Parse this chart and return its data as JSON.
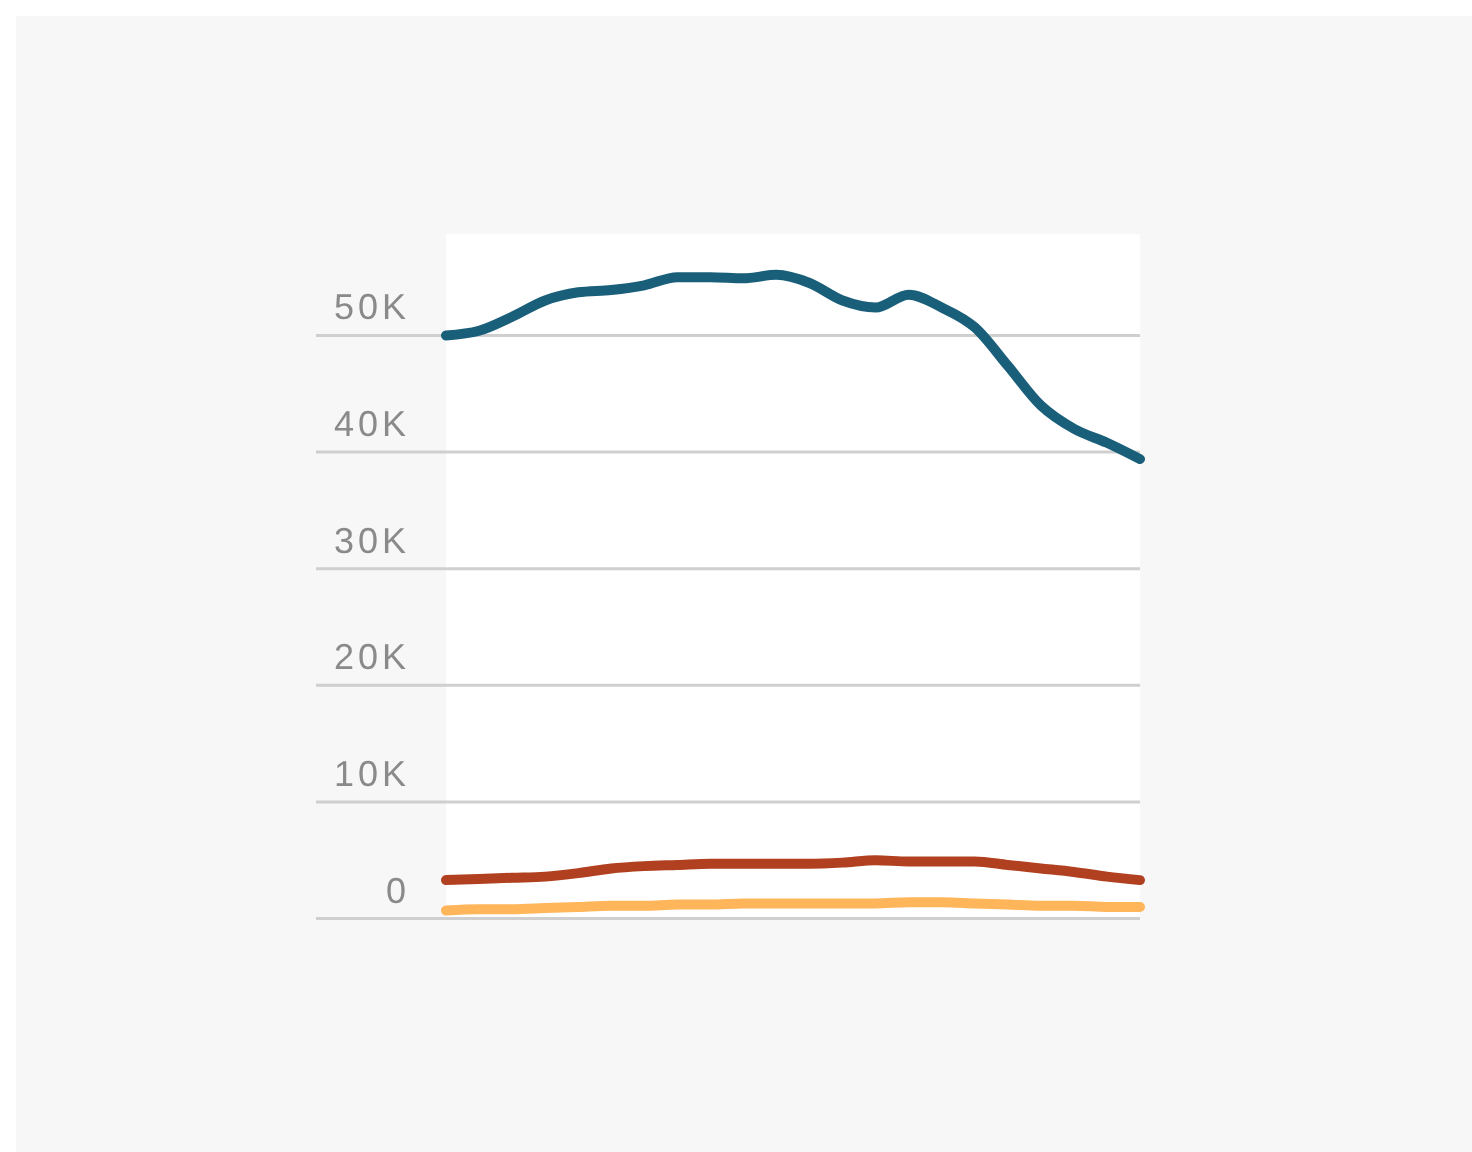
{
  "chart_data": {
    "type": "line",
    "categories": [
      null,
      null,
      null,
      null,
      null,
      null,
      null,
      null,
      null,
      null,
      null,
      null,
      null,
      null,
      null,
      null,
      null,
      null,
      null,
      null,
      null,
      null
    ],
    "series": [
      {
        "color": "#1a5f7a",
        "values": [
          50000,
          50400,
          51600,
          53000,
          53700,
          53900,
          54300,
          55000,
          55000,
          54900,
          55200,
          54500,
          53000,
          52400,
          53500,
          52400,
          50700,
          47400,
          44000,
          42000,
          40800,
          39400
        ]
      },
      {
        "color": "#b0401f",
        "values": [
          3300,
          3400,
          3500,
          3600,
          3900,
          4300,
          4500,
          4600,
          4700,
          4700,
          4700,
          4700,
          4800,
          5000,
          4900,
          4900,
          4900,
          4600,
          4300,
          4000,
          3600,
          3300
        ]
      },
      {
        "color": "#ffb55a",
        "values": [
          700,
          800,
          800,
          900,
          1000,
          1100,
          1100,
          1200,
          1200,
          1300,
          1300,
          1300,
          1300,
          1300,
          1400,
          1400,
          1300,
          1200,
          1100,
          1100,
          1000,
          1000
        ]
      }
    ],
    "ylim": [
      0,
      58700
    ],
    "yticks": [
      0,
      {
        "value": 10000,
        "label": "10K"
      },
      {
        "value": 20000,
        "label": "20K"
      },
      {
        "value": 30000,
        "label": "30K"
      },
      {
        "value": 40000,
        "label": "40K"
      },
      {
        "value": 50000,
        "label": "50K"
      }
    ],
    "grid": "y",
    "tick_labels": "y",
    "marker": "none",
    "line_style": "solid"
  }
}
